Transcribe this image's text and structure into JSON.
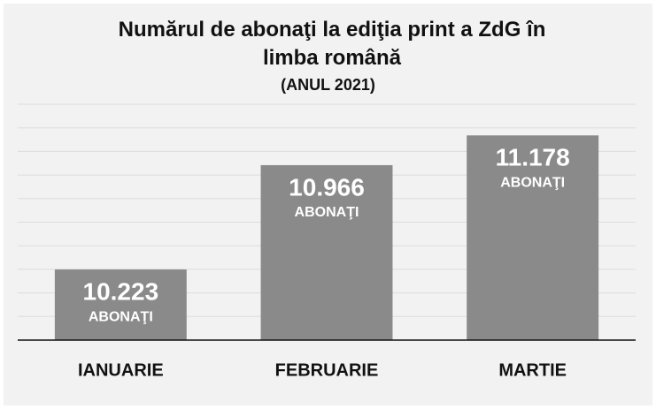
{
  "chart_data": {
    "type": "bar",
    "title": "Numărul de abonaţi la ediţia print a ZdG în limba română",
    "subtitle": "(ANUL 2021)",
    "categories": [
      "IANUARIE",
      "FEBRUARIE",
      "MARTIE"
    ],
    "values": [
      10223,
      10966,
      11178
    ],
    "value_labels": [
      "10.223",
      "10.966",
      "11.178"
    ],
    "unit_label": "ABONAŢI",
    "color": "#8a8a8a",
    "ylim": [
      9720,
      11400
    ],
    "yticks": [
      9720,
      9888,
      10056,
      10224,
      10392,
      10560,
      10728,
      10896,
      11064,
      11232,
      11400
    ],
    "grid": true
  }
}
